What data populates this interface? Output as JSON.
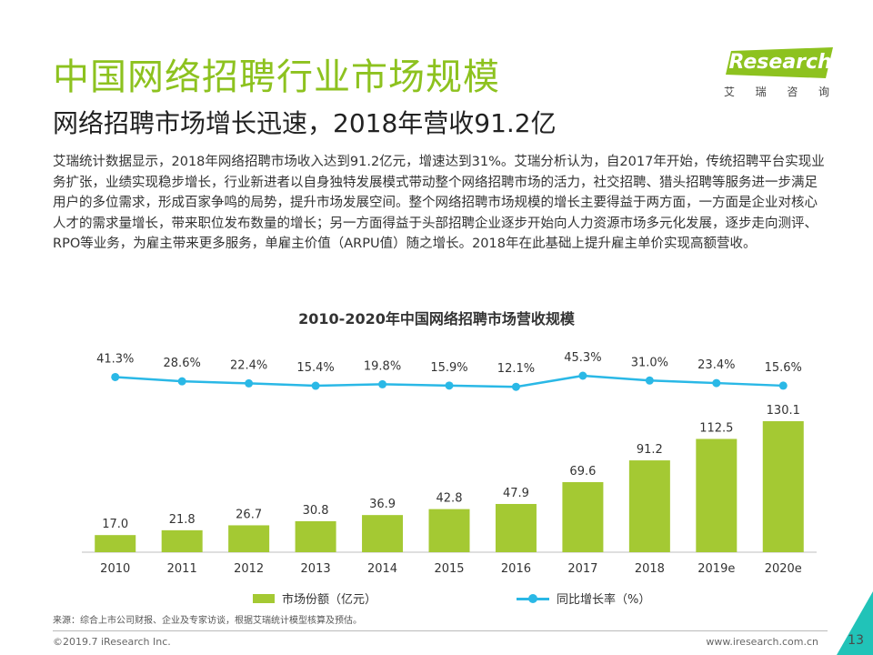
{
  "header": {
    "title": "中国网络招聘行业市场规模",
    "subtitle": "网络招聘市场增长迅速，2018年营收91.2亿",
    "body": "艾瑞统计数据显示，2018年网络招聘市场收入达到91.2亿元，增速达到31%。艾瑞分析认为，自2017年开始，传统招聘平台实现业务扩张，业绩实现稳步增长，行业新进者以自身独特发展模式带动整个网络招聘市场的活力，社交招聘、猎头招聘等服务进一步满足用户的多位需求，形成百家争鸣的局势，提升市场发展空间。整个网络招聘市场规模的增长主要得益于两方面，一方面是企业对核心人才的需求量增长，带来职位发布数量的增长；另一方面得益于头部招聘企业逐步开始向人力资源市场多元化发展，逐步走向测评、RPO等业务，为雇主带来更多服务，单雇主价值（ARPU值）随之增长。2018年在此基础上提升雇主单价实现高额营收。"
  },
  "logo": {
    "text": "iResearch",
    "sub": [
      "艾",
      "瑞",
      "咨",
      "询"
    ]
  },
  "chart_data": {
    "type": "bar",
    "title": "2010-2020年中国网络招聘市场营收规模",
    "categories": [
      "2010",
      "2011",
      "2012",
      "2013",
      "2014",
      "2015",
      "2016",
      "2017",
      "2018",
      "2019e",
      "2020e"
    ],
    "series": [
      {
        "name": "市场份额（亿元）",
        "type": "bar",
        "values": [
          17.0,
          21.8,
          26.7,
          30.8,
          36.9,
          42.8,
          47.9,
          69.6,
          91.2,
          112.5,
          130.1
        ],
        "labels": [
          "17.0",
          "21.8",
          "26.7",
          "30.8",
          "36.9",
          "42.8",
          "47.9",
          "69.6",
          "91.2",
          "112.5",
          "130.1"
        ]
      },
      {
        "name": "同比增长率（%）",
        "type": "line",
        "values": [
          41.3,
          28.6,
          22.4,
          15.4,
          19.8,
          15.9,
          12.1,
          45.3,
          31.0,
          23.4,
          15.6
        ],
        "labels": [
          "41.3%",
          "28.6%",
          "22.4%",
          "15.4%",
          "19.8%",
          "15.9%",
          "12.1%",
          "45.3%",
          "31.0%",
          "23.4%",
          "15.6%"
        ]
      }
    ],
    "legend": "bottom",
    "grid": false,
    "colors": {
      "bar": "#a4c933",
      "line": "#2ab8e6"
    }
  },
  "footer": {
    "source": "来源：综合上市公司财报、企业及专家访谈，根据艾瑞统计模型核算及预估。",
    "copyright": "©2019.7 iResearch Inc.",
    "url": "www.iresearch.com.cn",
    "page": "13"
  },
  "colors": {
    "title_green": "#8dc21f",
    "accent_teal": "#21c3b8"
  }
}
